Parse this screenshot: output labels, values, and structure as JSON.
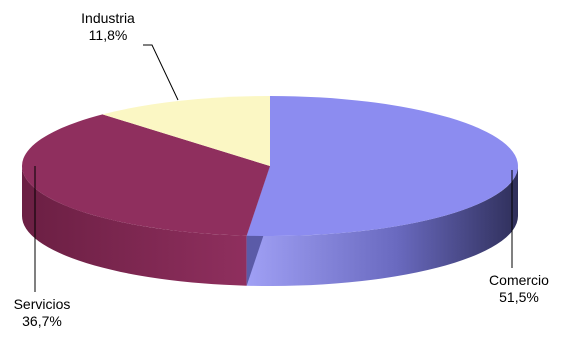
{
  "chart_data": {
    "type": "pie",
    "style": "3d",
    "categories": [
      "Comercio",
      "Servicios",
      "Industria"
    ],
    "values": [
      51.5,
      36.7,
      11.8
    ],
    "labels": [
      "Comercio\n51,5%",
      "Servicios\n36,7%",
      "Industria\n11,8%"
    ],
    "colors": [
      "#8c8cf0",
      "#8f2f5e",
      "#fbf7c4"
    ],
    "side_colors": [
      "#3f3f73",
      "#5a1b38",
      "#b8b38a"
    ],
    "legend": false
  }
}
